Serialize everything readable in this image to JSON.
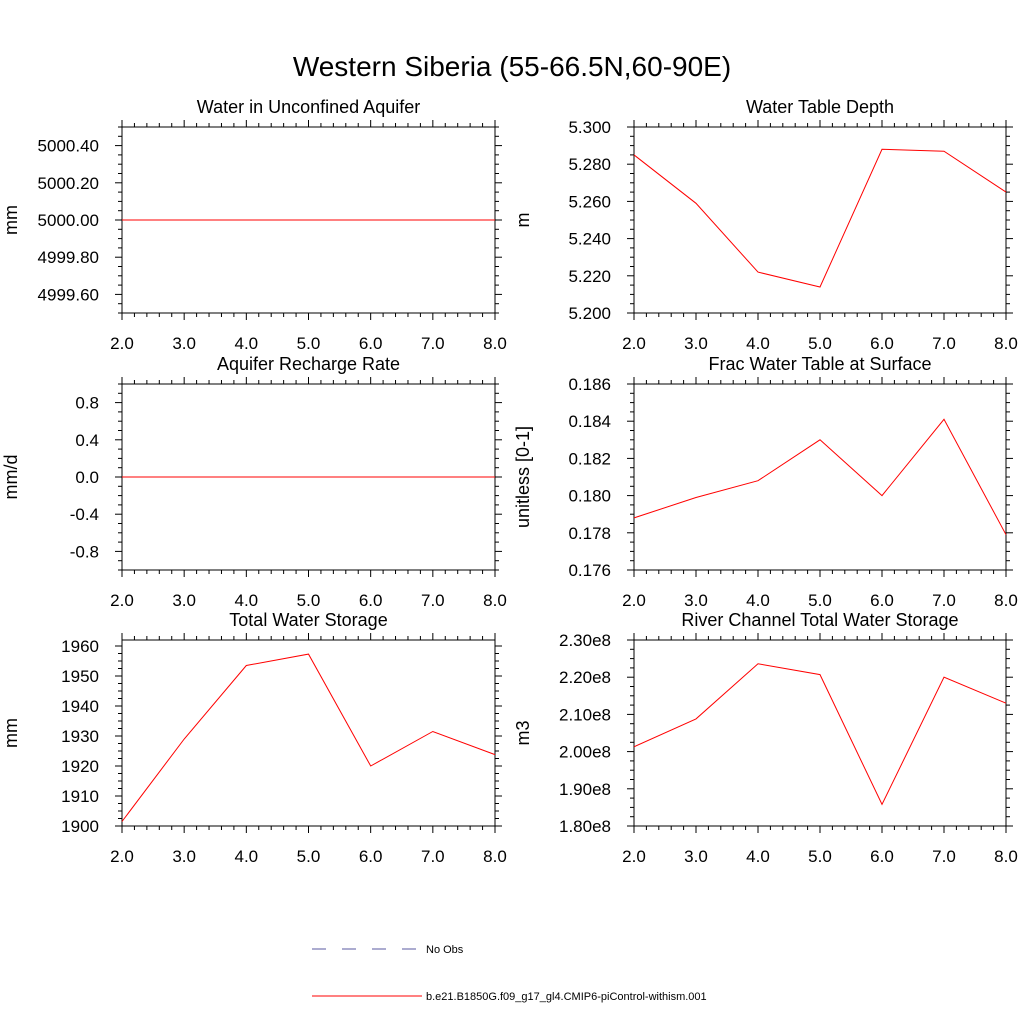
{
  "figure": {
    "title": "Western Siberia (55-66.5N,60-90E)"
  },
  "legend": {
    "entries": [
      {
        "label": "No Obs",
        "color": "#5a5aa0",
        "style": "dashed"
      },
      {
        "label": "b.e21.B1850G.f09_g17_gl4.CMIP6-piControl-withism.001",
        "color": "#ff0000",
        "style": "solid"
      }
    ]
  },
  "chart_data": [
    {
      "type": "line",
      "title": "Water in Unconfined Aquifer",
      "ylabel": "mm",
      "xlim": [
        2.0,
        8.0
      ],
      "ylim": [
        4999.5,
        5000.5
      ],
      "xticks": [
        2.0,
        3.0,
        4.0,
        5.0,
        6.0,
        7.0,
        8.0
      ],
      "xtick_labels": [
        "2.0",
        "3.0",
        "4.0",
        "5.0",
        "6.0",
        "7.0",
        "8.0"
      ],
      "yticks": [
        4999.6,
        4999.8,
        5000.0,
        5000.2,
        5000.4
      ],
      "ytick_labels": [
        "4999.60",
        "4999.80",
        "5000.00",
        "5000.20",
        "5000.40"
      ],
      "series": [
        {
          "color": "#ff0000",
          "x": [
            2,
            3,
            4,
            5,
            6,
            7,
            8
          ],
          "y": [
            5000.0,
            5000.0,
            5000.0,
            5000.0,
            5000.0,
            5000.0,
            5000.0
          ]
        }
      ]
    },
    {
      "type": "line",
      "title": "Water Table Depth",
      "ylabel": "m",
      "xlim": [
        2.0,
        8.0
      ],
      "ylim": [
        5.2,
        5.3
      ],
      "xticks": [
        2.0,
        3.0,
        4.0,
        5.0,
        6.0,
        7.0,
        8.0
      ],
      "xtick_labels": [
        "2.0",
        "3.0",
        "4.0",
        "5.0",
        "6.0",
        "7.0",
        "8.0"
      ],
      "yticks": [
        5.2,
        5.22,
        5.24,
        5.26,
        5.28,
        5.3
      ],
      "ytick_labels": [
        "5.200",
        "5.220",
        "5.240",
        "5.260",
        "5.280",
        "5.300"
      ],
      "series": [
        {
          "color": "#ff0000",
          "x": [
            2,
            3,
            4,
            5,
            6,
            7,
            8
          ],
          "y": [
            5.285,
            5.259,
            5.222,
            5.214,
            5.288,
            5.287,
            5.265
          ]
        }
      ]
    },
    {
      "type": "line",
      "title": "Aquifer Recharge Rate",
      "ylabel": "mm/d",
      "xlim": [
        2.0,
        8.0
      ],
      "ylim": [
        -1.0,
        1.0
      ],
      "xticks": [
        2.0,
        3.0,
        4.0,
        5.0,
        6.0,
        7.0,
        8.0
      ],
      "xtick_labels": [
        "2.0",
        "3.0",
        "4.0",
        "5.0",
        "6.0",
        "7.0",
        "8.0"
      ],
      "yticks": [
        -0.8,
        -0.4,
        0.0,
        0.4,
        0.8
      ],
      "ytick_labels": [
        "-0.8",
        "-0.4",
        "0.0",
        "0.4",
        "0.8"
      ],
      "series": [
        {
          "color": "#ff0000",
          "x": [
            2,
            3,
            4,
            5,
            6,
            7,
            8
          ],
          "y": [
            0,
            0,
            0,
            0,
            0,
            0,
            0
          ]
        }
      ]
    },
    {
      "type": "line",
      "title": "Frac Water Table at Surface",
      "ylabel": "unitless [0-1]",
      "xlim": [
        2.0,
        8.0
      ],
      "ylim": [
        0.176,
        0.186
      ],
      "xticks": [
        2.0,
        3.0,
        4.0,
        5.0,
        6.0,
        7.0,
        8.0
      ],
      "xtick_labels": [
        "2.0",
        "3.0",
        "4.0",
        "5.0",
        "6.0",
        "7.0",
        "8.0"
      ],
      "yticks": [
        0.176,
        0.178,
        0.18,
        0.182,
        0.184,
        0.186
      ],
      "ytick_labels": [
        "0.176",
        "0.178",
        "0.180",
        "0.182",
        "0.184",
        "0.186"
      ],
      "series": [
        {
          "color": "#ff0000",
          "x": [
            2,
            3,
            4,
            5,
            6,
            7,
            8
          ],
          "y": [
            0.1788,
            0.1799,
            0.1808,
            0.183,
            0.18,
            0.1841,
            0.1779
          ]
        }
      ]
    },
    {
      "type": "line",
      "title": "Total Water Storage",
      "ylabel": "mm",
      "xlim": [
        2.0,
        8.0
      ],
      "ylim": [
        1900,
        1962
      ],
      "xticks": [
        2.0,
        3.0,
        4.0,
        5.0,
        6.0,
        7.0,
        8.0
      ],
      "xtick_labels": [
        "2.0",
        "3.0",
        "4.0",
        "5.0",
        "6.0",
        "7.0",
        "8.0"
      ],
      "yticks": [
        1900,
        1910,
        1920,
        1930,
        1940,
        1950,
        1960
      ],
      "ytick_labels": [
        "1900",
        "1910",
        "1920",
        "1930",
        "1940",
        "1950",
        "1960"
      ],
      "series": [
        {
          "color": "#ff0000",
          "x": [
            2,
            3,
            4,
            5,
            6,
            7,
            8
          ],
          "y": [
            1901.5,
            1929.0,
            1953.5,
            1957.3,
            1920.0,
            1931.5,
            1923.8
          ]
        }
      ]
    },
    {
      "type": "line",
      "title": "River Channel Total Water Storage",
      "ylabel": "m3",
      "xlim": [
        2.0,
        8.0
      ],
      "ylim": [
        180000000,
        230000000
      ],
      "xticks": [
        2.0,
        3.0,
        4.0,
        5.0,
        6.0,
        7.0,
        8.0
      ],
      "xtick_labels": [
        "2.0",
        "3.0",
        "4.0",
        "5.0",
        "6.0",
        "7.0",
        "8.0"
      ],
      "yticks": [
        180000000,
        190000000,
        200000000,
        210000000,
        220000000,
        230000000
      ],
      "ytick_labels": [
        "1.80e8",
        "1.90e8",
        "2.00e8",
        "2.10e8",
        "2.20e8",
        "2.30e8"
      ],
      "series": [
        {
          "color": "#ff0000",
          "x": [
            2,
            3,
            4,
            5,
            6,
            7,
            8
          ],
          "y": [
            201300000,
            208800000,
            223600000,
            220700000,
            185800000,
            220000000,
            213000000
          ]
        }
      ]
    }
  ]
}
